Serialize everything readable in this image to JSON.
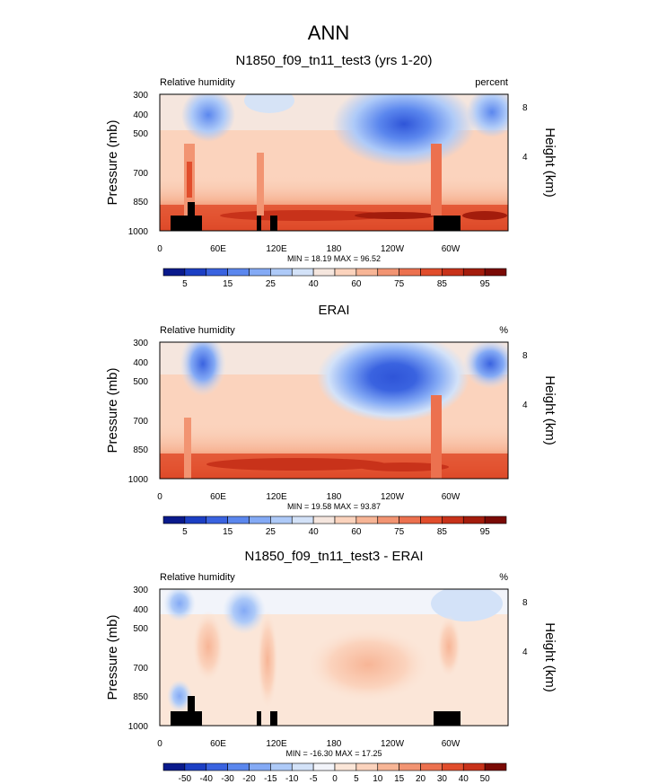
{
  "figure": {
    "title": "ANN"
  },
  "chart_data": [
    {
      "type": "heatmap",
      "title": "N1850_f09_tn11_test3 (yrs 1-20)",
      "left_label": "Relative humidity",
      "right_label": "percent",
      "ylabel": "Pressure (mb)",
      "y2label": "Height (km)",
      "x_ticks": [
        "0",
        "60E",
        "120E",
        "180",
        "120W",
        "60W"
      ],
      "y_ticks": [
        "300",
        "400",
        "500",
        "700",
        "850",
        "1000"
      ],
      "y2_ticks": [
        "8",
        "4"
      ],
      "min_max": "MIN =  18.19  MAX =  96.52",
      "colorbar": {
        "labels": [
          "5",
          "15",
          "25",
          "40",
          "60",
          "75",
          "85",
          "95"
        ],
        "colors": [
          "#0a1a8c",
          "#1c3fc4",
          "#3a63e0",
          "#5b87ee",
          "#84aaf5",
          "#aecaf8",
          "#d3e2f8",
          "#f5e6de",
          "#fbd3bd",
          "#f7b596",
          "#f29472",
          "#ec714f",
          "#e14d2c",
          "#c8321a",
          "#a31c0c",
          "#7a0a05"
        ]
      },
      "data_kind": "model"
    },
    {
      "type": "heatmap",
      "title": "ERAI",
      "left_label": "Relative humidity",
      "right_label": "%",
      "ylabel": "Pressure (mb)",
      "y2label": "Height (km)",
      "x_ticks": [
        "0",
        "60E",
        "120E",
        "180",
        "120W",
        "60W"
      ],
      "y_ticks": [
        "300",
        "400",
        "500",
        "700",
        "850",
        "1000"
      ],
      "y2_ticks": [
        "8",
        "4"
      ],
      "min_max": "MIN =  19.58  MAX =  93.87",
      "colorbar": {
        "labels": [
          "5",
          "15",
          "25",
          "40",
          "60",
          "75",
          "85",
          "95"
        ],
        "colors": [
          "#0a1a8c",
          "#1c3fc4",
          "#3a63e0",
          "#5b87ee",
          "#84aaf5",
          "#aecaf8",
          "#d3e2f8",
          "#f5e6de",
          "#fbd3bd",
          "#f7b596",
          "#f29472",
          "#ec714f",
          "#e14d2c",
          "#c8321a",
          "#a31c0c",
          "#7a0a05"
        ]
      },
      "data_kind": "obs"
    },
    {
      "type": "heatmap",
      "title": "N1850_f09_tn11_test3 - ERAI",
      "left_label": "Relative humidity",
      "right_label": "%",
      "ylabel": "Pressure (mb)",
      "y2label": "Height (km)",
      "x_ticks": [
        "0",
        "60E",
        "120E",
        "180",
        "120W",
        "60W"
      ],
      "y_ticks": [
        "300",
        "400",
        "500",
        "700",
        "850",
        "1000"
      ],
      "y2_ticks": [
        "8",
        "4"
      ],
      "min_max": "MIN = -16.30  MAX =  17.25",
      "colorbar": {
        "labels": [
          "-50",
          "-40",
          "-30",
          "-20",
          "-15",
          "-10",
          "-5",
          "0",
          "5",
          "10",
          "15",
          "20",
          "30",
          "40",
          "50"
        ],
        "colors": [
          "#0a1a8c",
          "#1c3fc4",
          "#3a63e0",
          "#5b87ee",
          "#84aaf5",
          "#aecaf8",
          "#d3e2f8",
          "#f2f4fa",
          "#fbe6d8",
          "#fbd3bd",
          "#f7b596",
          "#f29472",
          "#ec714f",
          "#e14d2c",
          "#c8321a",
          "#7a0a05"
        ]
      },
      "data_kind": "diff"
    }
  ]
}
